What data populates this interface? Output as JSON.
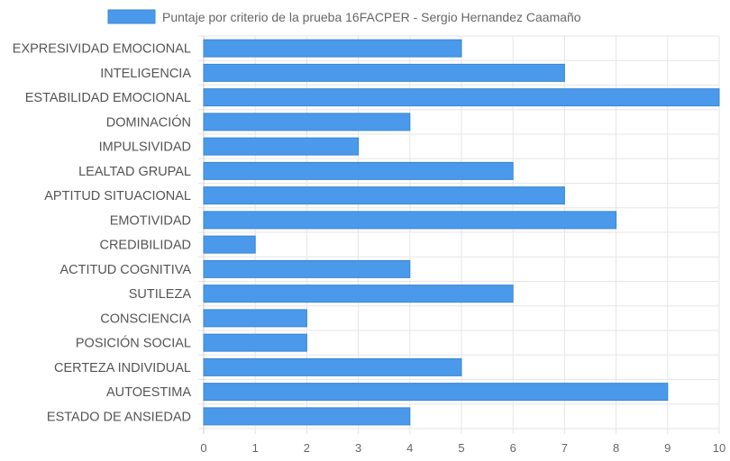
{
  "chart_data": {
    "type": "bar",
    "orientation": "horizontal",
    "legend": {
      "label": "Puntaje por criterio de la prueba 16FACPER - Sergio Hernandez Caamaño",
      "placement": "top-center"
    },
    "categories": [
      "EXPRESIVIDAD EMOCIONAL",
      "INTELIGENCIA",
      "ESTABILIDAD EMOCIONAL",
      "DOMINACIÓN",
      "IMPULSIVIDAD",
      "LEALTAD GRUPAL",
      "APTITUD SITUACIONAL",
      "EMOTIVIDAD",
      "CREDIBILIDAD",
      "ACTITUD COGNITIVA",
      "SUTILEZA",
      "CONSCIENCIA",
      "POSICIÓN SOCIAL",
      "CERTEZA INDIVIDUAL",
      "AUTOESTIMA",
      "ESTADO DE ANSIEDAD"
    ],
    "series": [
      {
        "name": "Puntaje por criterio de la prueba 16FACPER - Sergio Hernandez Caamaño",
        "values": [
          5,
          7,
          10,
          4,
          3,
          6,
          7,
          8,
          1,
          4,
          6,
          2,
          2,
          5,
          9,
          4
        ],
        "color": "#4a99ea",
        "border_color": "#3a86d6"
      }
    ],
    "xlim": [
      0,
      10
    ],
    "xticks": [
      "0",
      "1",
      "2",
      "3",
      "4",
      "5",
      "6",
      "7",
      "8",
      "9",
      "10"
    ],
    "grid": true,
    "grid_color": "#e6e6e6"
  }
}
